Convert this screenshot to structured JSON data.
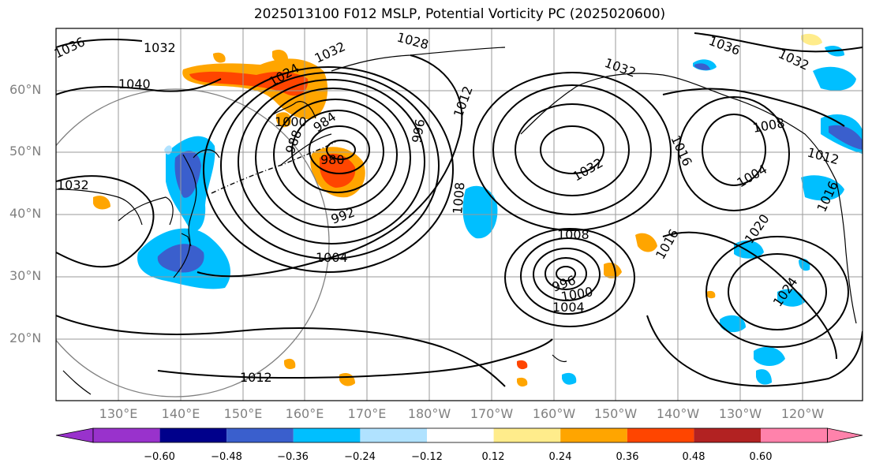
{
  "title": "2025013100 F012 MSLP, Potential Vorticity PC (2025020600)",
  "lat_labels": [
    "60°N",
    "50°N",
    "40°N",
    "30°N",
    "20°N"
  ],
  "lon_labels": [
    "130°E",
    "140°E",
    "150°E",
    "160°E",
    "170°E",
    "180°W",
    "170°W",
    "160°W",
    "150°W",
    "140°W",
    "130°W",
    "120°W"
  ],
  "colorbar": {
    "tick_labels": [
      "−0.60",
      "−0.48",
      "−0.36",
      "−0.24",
      "−0.12",
      "0.12",
      "0.24",
      "0.36",
      "0.48",
      "0.60"
    ],
    "colors": [
      "#9932CC",
      "#00008B",
      "#3A5FCD",
      "#00BFFF",
      "#B0E2FF",
      "#FFFFFF",
      "#FFEC8B",
      "#FFA500",
      "#FF4500",
      "#B22222",
      "#FF82AB"
    ]
  },
  "isobar_labels": [
    "1036",
    "1032",
    "1040",
    "1024",
    "1032",
    "1028",
    "1000",
    "984",
    "988",
    "980",
    "992",
    "1004",
    "1012",
    "996",
    "1008",
    "1032",
    "1032",
    "1016",
    "1036",
    "1032",
    "1008",
    "1004",
    "1016",
    "1008",
    "996",
    "1000",
    "1004",
    "1020",
    "1024",
    "1012",
    "1032",
    "1012",
    "1016"
  ]
}
